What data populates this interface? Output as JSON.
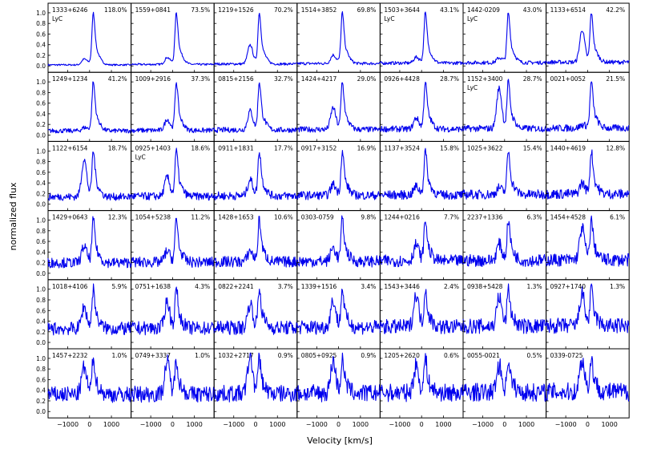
{
  "chart_data": {
    "type": "line",
    "xlabel": "Velocity [km/s]",
    "ylabel": "normalized flux",
    "xlim": [
      -1900,
      1900
    ],
    "ylim": [
      -0.12,
      1.18
    ],
    "xticks": [
      -1000,
      0,
      1000
    ],
    "xtick_labels": [
      "−1000",
      "0",
      "1000"
    ],
    "yticks": [
      0.0,
      0.2,
      0.4,
      0.6,
      0.8,
      1.0
    ],
    "ytick_labels": [
      "0.0",
      "0.2",
      "0.4",
      "0.6",
      "0.8",
      "1.0"
    ],
    "grid": false,
    "line_color": "#0000ee",
    "layout": {
      "rows": 6,
      "cols": 7
    },
    "panels": [
      {
        "name": "1333+6246",
        "pct": "118.0%",
        "lyc": true,
        "peak": 1.0
      },
      {
        "name": "1559+0841",
        "pct": "73.5%",
        "lyc": false,
        "peak": 1.0
      },
      {
        "name": "1219+1526",
        "pct": "70.2%",
        "lyc": false,
        "peak": 1.0
      },
      {
        "name": "1514+3852",
        "pct": "69.8%",
        "lyc": false,
        "peak": 1.0
      },
      {
        "name": "1503+3644",
        "pct": "43.1%",
        "lyc": true,
        "peak": 1.0
      },
      {
        "name": "1442-0209",
        "pct": "43.0%",
        "lyc": true,
        "peak": 1.0
      },
      {
        "name": "1133+6514",
        "pct": "42.2%",
        "lyc": false,
        "peak": 1.0
      },
      {
        "name": "1249+1234",
        "pct": "41.2%",
        "lyc": false,
        "peak": 1.0
      },
      {
        "name": "1009+2916",
        "pct": "37.3%",
        "lyc": false,
        "peak": 1.0
      },
      {
        "name": "0815+2156",
        "pct": "32.7%",
        "lyc": false,
        "peak": 1.0
      },
      {
        "name": "1424+4217",
        "pct": "29.0%",
        "lyc": false,
        "peak": 1.0
      },
      {
        "name": "0926+4428",
        "pct": "28.7%",
        "lyc": false,
        "peak": 1.0
      },
      {
        "name": "1152+3400",
        "pct": "28.7%",
        "lyc": true,
        "peak": 1.0
      },
      {
        "name": "0021+0052",
        "pct": "21.5%",
        "lyc": false,
        "peak": 1.0
      },
      {
        "name": "1122+6154",
        "pct": "18.7%",
        "lyc": false,
        "peak": 1.0
      },
      {
        "name": "0925+1403",
        "pct": "18.6%",
        "lyc": true,
        "peak": 1.0
      },
      {
        "name": "0911+1831",
        "pct": "17.7%",
        "lyc": false,
        "peak": 1.0
      },
      {
        "name": "0917+3152",
        "pct": "16.9%",
        "lyc": false,
        "peak": 1.0
      },
      {
        "name": "1137+3524",
        "pct": "15.8%",
        "lyc": false,
        "peak": 1.0
      },
      {
        "name": "1025+3622",
        "pct": "15.4%",
        "lyc": false,
        "peak": 1.0
      },
      {
        "name": "1440+4619",
        "pct": "12.8%",
        "lyc": false,
        "peak": 1.0
      },
      {
        "name": "1429+0643",
        "pct": "12.3%",
        "lyc": false,
        "peak": 1.0
      },
      {
        "name": "1054+5238",
        "pct": "11.2%",
        "lyc": false,
        "peak": 1.0
      },
      {
        "name": "1428+1653",
        "pct": "10.6%",
        "lyc": false,
        "peak": 1.0
      },
      {
        "name": "0303-0759",
        "pct": "9.8%",
        "lyc": false,
        "peak": 1.0
      },
      {
        "name": "1244+0216",
        "pct": "7.7%",
        "lyc": false,
        "peak": 1.0
      },
      {
        "name": "2237+1336",
        "pct": "6.3%",
        "lyc": false,
        "peak": 1.0
      },
      {
        "name": "1454+4528",
        "pct": "6.1%",
        "lyc": false,
        "peak": 1.0
      },
      {
        "name": "1018+4106",
        "pct": "5.9%",
        "lyc": false,
        "peak": 1.0
      },
      {
        "name": "0751+1638",
        "pct": "4.3%",
        "lyc": false,
        "peak": 1.0
      },
      {
        "name": "0822+2241",
        "pct": "3.7%",
        "lyc": false,
        "peak": 1.0
      },
      {
        "name": "1339+1516",
        "pct": "3.4%",
        "lyc": false,
        "peak": 1.0
      },
      {
        "name": "1543+3446",
        "pct": "2.4%",
        "lyc": false,
        "peak": 1.0
      },
      {
        "name": "0938+5428",
        "pct": "1.3%",
        "lyc": false,
        "peak": 1.0
      },
      {
        "name": "0927+1740",
        "pct": "1.3%",
        "lyc": false,
        "peak": 1.0
      },
      {
        "name": "1457+2232",
        "pct": "1.0%",
        "lyc": false,
        "peak": 1.0
      },
      {
        "name": "0749+3337",
        "pct": "1.0%",
        "lyc": false,
        "peak": 1.0
      },
      {
        "name": "1032+2717",
        "pct": "0.9%",
        "lyc": false,
        "peak": 1.0
      },
      {
        "name": "0805+0925",
        "pct": "0.9%",
        "lyc": false,
        "peak": 1.0
      },
      {
        "name": "1205+2620",
        "pct": "0.6%",
        "lyc": false,
        "peak": 1.0
      },
      {
        "name": "0055-0021",
        "pct": "0.5%",
        "lyc": false,
        "peak": 1.0
      },
      {
        "name": "0339-0725",
        "pct": "",
        "lyc": false,
        "peak": 1.0
      }
    ],
    "lyc_label": "LyC"
  }
}
